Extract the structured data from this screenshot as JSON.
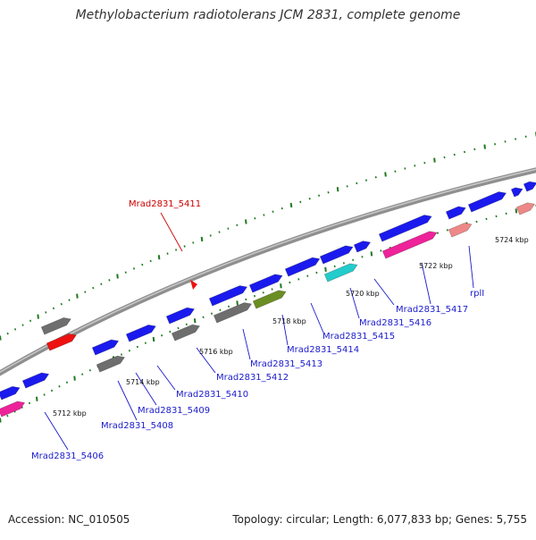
{
  "title": "Methylobacterium radiotolerans JCM 2831, complete genome",
  "footer": {
    "accession": "Accession: NC_010505",
    "summary": "Topology: circular; Length: 6,077,833 bp; Genes: 5,755"
  },
  "colors": {
    "backbone": "#8a8a8a",
    "tick": "#1f7a1f",
    "gene_blue": "#1a1aee",
    "gene_grey": "#6e6e6e",
    "gene_red": "#ee1111",
    "gene_pink": "#ee2299",
    "gene_cyan": "#22cccc",
    "gene_olive": "#6b8e23",
    "gene_salmon": "#ee8888",
    "label_blue": "#1a1acc",
    "label_red": "#cc0000"
  },
  "scale_labels": [
    "5712 kbp",
    "5714 kbp",
    "5716 kbp",
    "5718 kbp",
    "5720 kbp",
    "5722 kbp",
    "5724 kbp"
  ],
  "gene_labels": [
    {
      "text": "Mrad2831_5406",
      "color": "blue"
    },
    {
      "text": "Mrad2831_5408",
      "color": "blue"
    },
    {
      "text": "Mrad2831_5409",
      "color": "blue"
    },
    {
      "text": "Mrad2831_5410",
      "color": "blue"
    },
    {
      "text": "Mrad2831_5412",
      "color": "blue"
    },
    {
      "text": "Mrad2831_5413",
      "color": "blue"
    },
    {
      "text": "Mrad2831_5414",
      "color": "blue"
    },
    {
      "text": "Mrad2831_5415",
      "color": "blue"
    },
    {
      "text": "Mrad2831_5416",
      "color": "blue"
    },
    {
      "text": "Mrad2831_5417",
      "color": "blue"
    },
    {
      "text": "rplI",
      "color": "blue"
    },
    {
      "text": "Mrad2831_5411",
      "color": "red"
    }
  ]
}
